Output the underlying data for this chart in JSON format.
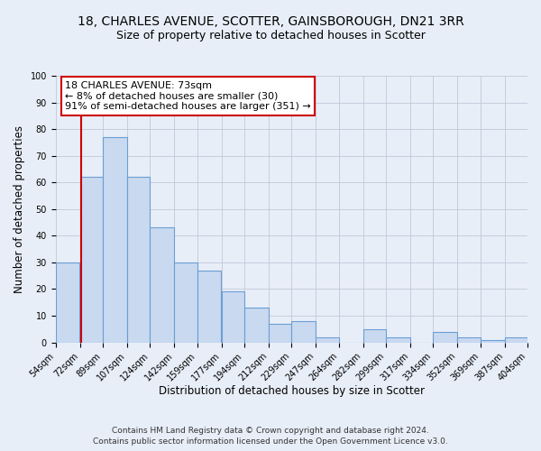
{
  "title": "18, CHARLES AVENUE, SCOTTER, GAINSBOROUGH, DN21 3RR",
  "subtitle": "Size of property relative to detached houses in Scotter",
  "xlabel": "Distribution of detached houses by size in Scotter",
  "ylabel": "Number of detached properties",
  "bin_edges": [
    54,
    72,
    89,
    107,
    124,
    142,
    159,
    177,
    194,
    212,
    229,
    247,
    264,
    282,
    299,
    317,
    334,
    352,
    369,
    387,
    404
  ],
  "bin_heights": [
    30,
    62,
    77,
    62,
    43,
    30,
    27,
    19,
    13,
    7,
    8,
    2,
    0,
    5,
    2,
    0,
    4,
    2,
    1,
    2
  ],
  "bar_facecolor": "#c9d9f0",
  "bar_edgecolor": "#6b9fd4",
  "bar_linewidth": 0.8,
  "vline_x": 73,
  "vline_color": "#cc0000",
  "vline_linewidth": 1.5,
  "annotation_line1": "18 CHARLES AVENUE: 73sqm",
  "annotation_line2": "← 8% of detached houses are smaller (30)",
  "annotation_line3": "91% of semi-detached houses are larger (351) →",
  "annotation_box_facecolor": "white",
  "annotation_box_edgecolor": "#cc0000",
  "ylim": [
    0,
    100
  ],
  "yticks": [
    0,
    10,
    20,
    30,
    40,
    50,
    60,
    70,
    80,
    90,
    100
  ],
  "grid_color": "#c0c8d8",
  "bg_color": "#e8eef8",
  "footnote1": "Contains HM Land Registry data © Crown copyright and database right 2024.",
  "footnote2": "Contains public sector information licensed under the Open Government Licence v3.0.",
  "title_fontsize": 10,
  "subtitle_fontsize": 9,
  "label_fontsize": 8.5,
  "tick_fontsize": 7,
  "annotation_fontsize": 8,
  "footnote_fontsize": 6.5
}
